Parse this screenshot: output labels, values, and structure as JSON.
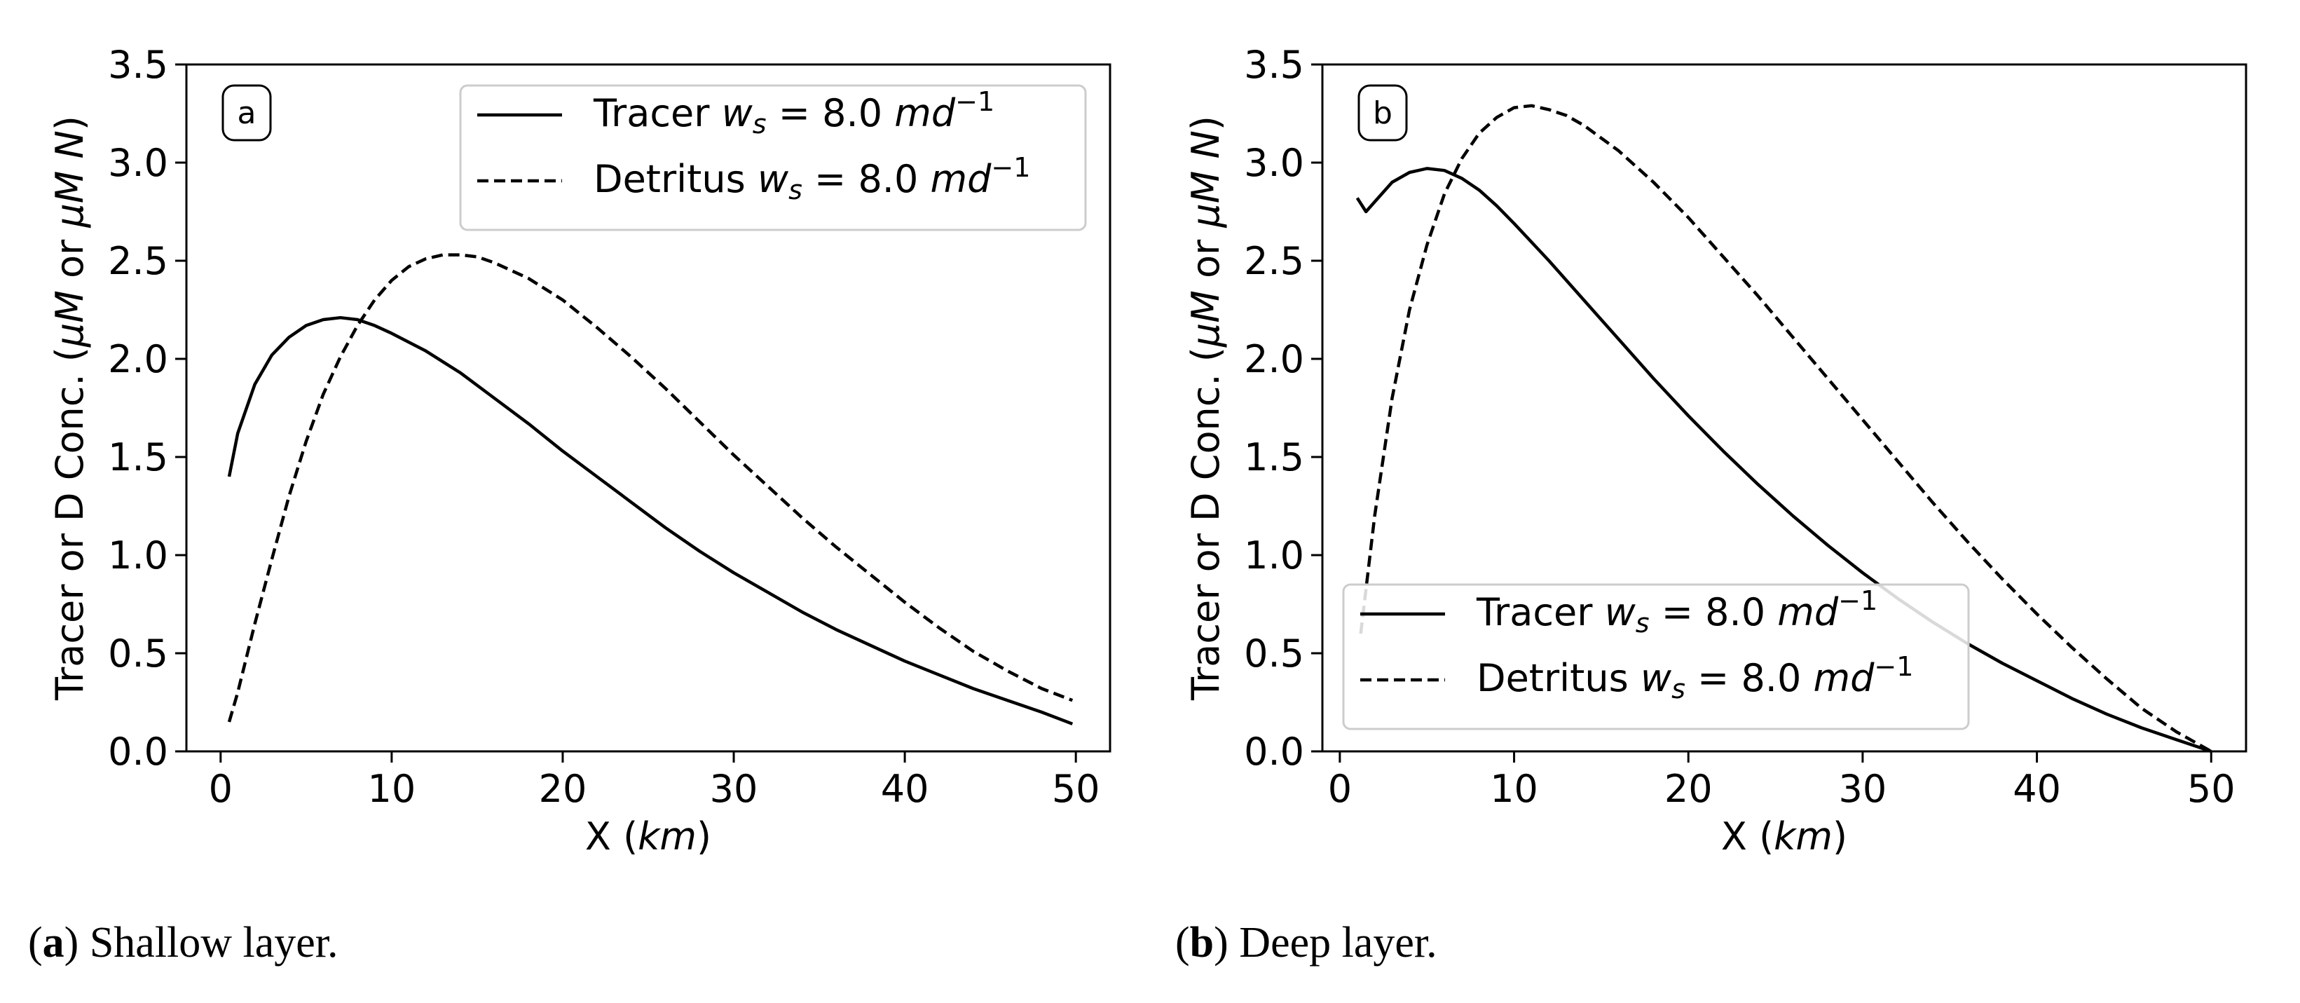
{
  "chart_data": [
    {
      "type": "line",
      "panel_label": "a",
      "xlabel": "X (km)",
      "ylabel": "Tracer or D Conc. (μM or μM N)",
      "xlim": [
        -2,
        52
      ],
      "ylim": [
        0,
        3.5
      ],
      "xticks": [
        "0",
        "10",
        "20",
        "30",
        "40",
        "50"
      ],
      "yticks": [
        "0.0",
        "0.5",
        "1.0",
        "1.5",
        "2.0",
        "2.5",
        "3.0",
        "3.5"
      ],
      "legend_position": "top-right",
      "grid": false,
      "series": [
        {
          "name": "Tracer ws = 8.0 md⁻¹",
          "style": "solid",
          "x": [
            0.5,
            1,
            2,
            3,
            4,
            5,
            6,
            7,
            8,
            9,
            10,
            12,
            14,
            16,
            18,
            20,
            22,
            24,
            26,
            28,
            30,
            32,
            34,
            36,
            38,
            40,
            42,
            44,
            46,
            48,
            49.8
          ],
          "y": [
            1.4,
            1.62,
            1.87,
            2.02,
            2.11,
            2.17,
            2.2,
            2.21,
            2.2,
            2.17,
            2.13,
            2.04,
            1.93,
            1.8,
            1.67,
            1.53,
            1.4,
            1.27,
            1.14,
            1.02,
            0.91,
            0.81,
            0.71,
            0.62,
            0.54,
            0.46,
            0.39,
            0.32,
            0.26,
            0.2,
            0.14
          ]
        },
        {
          "name": "Detritus ws = 8.0 md⁻¹",
          "style": "dashed",
          "x": [
            0.5,
            1,
            2,
            3,
            4,
            5,
            6,
            7,
            8,
            9,
            10,
            11,
            12,
            13,
            14,
            15,
            16,
            18,
            20,
            22,
            24,
            26,
            28,
            30,
            32,
            34,
            36,
            38,
            40,
            42,
            44,
            46,
            48,
            49.8
          ],
          "y": [
            0.15,
            0.3,
            0.65,
            0.98,
            1.3,
            1.58,
            1.82,
            2.01,
            2.17,
            2.3,
            2.4,
            2.47,
            2.51,
            2.53,
            2.53,
            2.52,
            2.49,
            2.41,
            2.3,
            2.16,
            2.01,
            1.85,
            1.68,
            1.51,
            1.35,
            1.19,
            1.04,
            0.9,
            0.76,
            0.63,
            0.51,
            0.41,
            0.32,
            0.26
          ]
        }
      ]
    },
    {
      "type": "line",
      "panel_label": "b",
      "xlabel": "X (km)",
      "ylabel": "Tracer or D Conc. (μM or μM N)",
      "xlim": [
        -1,
        52
      ],
      "ylim": [
        0,
        3.5
      ],
      "xticks": [
        "0",
        "10",
        "20",
        "30",
        "40",
        "50"
      ],
      "yticks": [
        "0.0",
        "0.5",
        "1.0",
        "1.5",
        "2.0",
        "2.5",
        "3.0",
        "3.5"
      ],
      "legend_position": "lower-left",
      "grid": false,
      "series": [
        {
          "name": "Tracer ws = 8.0 md⁻¹",
          "style": "solid",
          "x": [
            1,
            1.5,
            2,
            3,
            4,
            5,
            6,
            7,
            8,
            9,
            10,
            12,
            14,
            16,
            18,
            20,
            22,
            24,
            26,
            28,
            30,
            32,
            34,
            36,
            38,
            40,
            42,
            44,
            46,
            48,
            50
          ],
          "y": [
            2.82,
            2.75,
            2.8,
            2.9,
            2.95,
            2.97,
            2.96,
            2.92,
            2.86,
            2.78,
            2.69,
            2.5,
            2.3,
            2.1,
            1.9,
            1.71,
            1.53,
            1.36,
            1.2,
            1.05,
            0.91,
            0.78,
            0.66,
            0.55,
            0.45,
            0.36,
            0.27,
            0.19,
            0.12,
            0.06,
            0.0
          ]
        },
        {
          "name": "Detritus ws = 8.0 md⁻¹",
          "style": "dashed",
          "x": [
            1.2,
            2,
            3,
            4,
            5,
            6,
            7,
            8,
            9,
            10,
            11,
            12,
            13,
            14,
            16,
            18,
            20,
            22,
            24,
            26,
            28,
            30,
            32,
            34,
            36,
            38,
            40,
            42,
            44,
            46,
            48,
            50
          ],
          "y": [
            0.6,
            1.2,
            1.8,
            2.25,
            2.58,
            2.84,
            3.02,
            3.15,
            3.23,
            3.28,
            3.29,
            3.27,
            3.24,
            3.19,
            3.06,
            2.9,
            2.72,
            2.52,
            2.32,
            2.11,
            1.9,
            1.69,
            1.48,
            1.27,
            1.07,
            0.88,
            0.7,
            0.53,
            0.37,
            0.22,
            0.1,
            0.0
          ]
        }
      ]
    }
  ],
  "captions": [
    {
      "letter": "a",
      "text": "Shallow layer."
    },
    {
      "letter": "b",
      "text": "Deep layer."
    }
  ],
  "legend_labels": {
    "tracer": {
      "word": "Tracer",
      "w": "w",
      "sub": "s",
      "eq": " = 8.0 ",
      "unit": "md",
      "exp": "−1"
    },
    "detritus": {
      "word": "Detritus",
      "w": "w",
      "sub": "s",
      "eq": " = 8.0 ",
      "unit": "md",
      "exp": "−1"
    }
  },
  "colors": {
    "line": "#000000",
    "axes": "#000000",
    "background": "#ffffff"
  }
}
